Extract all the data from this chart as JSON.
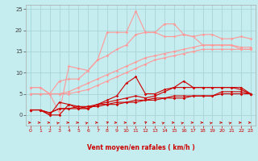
{
  "xlabel": "Vent moyen/en rafales ( km/h )",
  "xlim": [
    -0.5,
    23.5
  ],
  "ylim": [
    -2.5,
    26
  ],
  "yticks": [
    0,
    5,
    10,
    15,
    20,
    25
  ],
  "xticks": [
    0,
    1,
    2,
    3,
    4,
    5,
    6,
    7,
    8,
    9,
    10,
    11,
    12,
    13,
    14,
    15,
    16,
    17,
    18,
    19,
    20,
    21,
    22,
    23
  ],
  "bg_color": "#c5ecee",
  "grid_color": "#a8d4d8",
  "lines_light": [
    [
      6.5,
      6.5,
      5.0,
      0.5,
      11.5,
      11.0,
      10.5,
      13.0,
      19.5,
      19.5,
      19.5,
      24.5,
      19.5,
      19.5,
      21.5,
      21.5,
      19.0,
      18.5,
      19.0,
      19.0,
      18.0,
      18.0,
      18.5,
      18.0
    ],
    [
      6.5,
      6.5,
      5.0,
      8.0,
      8.5,
      8.5,
      10.5,
      13.0,
      14.0,
      15.5,
      16.5,
      19.0,
      19.5,
      19.5,
      18.5,
      18.5,
      19.0,
      18.5,
      16.5,
      16.5,
      16.5,
      16.5,
      15.5,
      15.5
    ],
    [
      5.0,
      5.0,
      5.0,
      5.0,
      5.5,
      6.5,
      7.5,
      8.5,
      9.5,
      10.5,
      11.5,
      12.5,
      13.5,
      14.0,
      14.5,
      15.0,
      15.5,
      16.0,
      16.5,
      16.5,
      16.5,
      16.5,
      16.0,
      16.0
    ],
    [
      5.0,
      5.0,
      5.0,
      5.0,
      5.0,
      5.5,
      6.0,
      7.0,
      8.0,
      9.0,
      10.0,
      11.0,
      12.0,
      13.0,
      13.5,
      14.0,
      14.5,
      15.0,
      15.5,
      15.5,
      15.5,
      15.5,
      15.5,
      15.5
    ]
  ],
  "light_color": "#ff9999",
  "lines_dark": [
    [
      1.2,
      1.2,
      0.0,
      0.0,
      2.5,
      2.0,
      1.5,
      2.5,
      3.5,
      4.5,
      7.5,
      9.0,
      5.0,
      5.0,
      6.0,
      6.5,
      8.0,
      6.5,
      6.5,
      6.5,
      6.5,
      6.5,
      6.5,
      5.0
    ],
    [
      1.2,
      1.2,
      0.0,
      3.0,
      2.5,
      1.5,
      1.5,
      2.5,
      3.0,
      3.5,
      4.0,
      4.5,
      4.0,
      4.5,
      5.5,
      6.5,
      6.5,
      6.5,
      6.5,
      6.5,
      6.5,
      6.5,
      6.0,
      5.0
    ],
    [
      1.2,
      1.2,
      0.5,
      1.5,
      1.5,
      2.0,
      2.0,
      2.5,
      2.5,
      3.0,
      3.0,
      3.5,
      3.5,
      4.0,
      4.0,
      4.5,
      4.5,
      4.5,
      4.5,
      4.5,
      5.5,
      5.5,
      5.5,
      5.0
    ],
    [
      1.2,
      1.2,
      0.5,
      1.5,
      1.5,
      1.5,
      2.0,
      2.0,
      2.5,
      2.5,
      3.0,
      3.0,
      3.5,
      3.5,
      4.0,
      4.0,
      4.0,
      4.5,
      4.5,
      4.5,
      5.0,
      5.0,
      5.0,
      5.0
    ]
  ],
  "dark_color": "#cc0000",
  "arrow_angles": [
    0,
    0,
    0,
    30,
    0,
    0,
    30,
    0,
    45,
    0,
    0,
    30,
    45,
    0,
    30,
    0,
    30,
    0,
    0,
    30,
    0,
    30,
    0,
    0
  ],
  "arrow_color": "#cc0000"
}
